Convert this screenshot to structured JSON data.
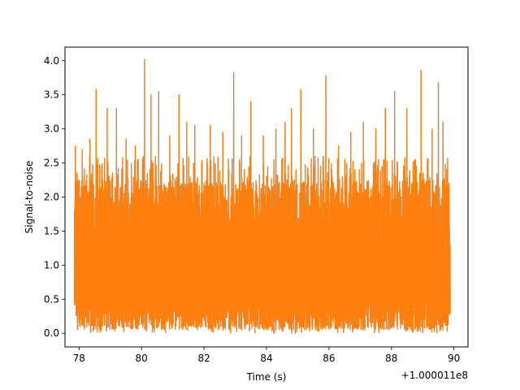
{
  "chart_data": {
    "type": "line",
    "title": "",
    "xlabel": "Time (s)",
    "ylabel": "Signal-to-noise",
    "x_offset_label": "+1.000011e8",
    "xlim": [
      77.55,
      90.45
    ],
    "ylim": [
      -0.2,
      4.2
    ],
    "x_ticks": [
      {
        "value": 78,
        "label": "78"
      },
      {
        "value": 80,
        "label": "80"
      },
      {
        "value": 82,
        "label": "82"
      },
      {
        "value": 84,
        "label": "84"
      },
      {
        "value": 86,
        "label": "86"
      },
      {
        "value": 88,
        "label": "88"
      },
      {
        "value": 90,
        "label": "90"
      }
    ],
    "y_ticks": [
      {
        "value": 0.0,
        "label": "0.0"
      },
      {
        "value": 0.5,
        "label": "0.5"
      },
      {
        "value": 1.0,
        "label": "1.0"
      },
      {
        "value": 1.5,
        "label": "1.5"
      },
      {
        "value": 2.0,
        "label": "2.0"
      },
      {
        "value": 2.5,
        "label": "2.5"
      },
      {
        "value": 3.0,
        "label": "3.0"
      },
      {
        "value": 3.5,
        "label": "3.5"
      },
      {
        "value": 4.0,
        "label": "4.0"
      }
    ],
    "grid": false,
    "legend": "none",
    "colors": {
      "series": "#ff7f0e",
      "underlay": "#1f77b4",
      "axes": "#000000"
    },
    "series": [
      {
        "x_range": [
          77.85,
          89.88
        ],
        "peaks": [
          {
            "x": 77.88,
            "y": 2.75
          },
          {
            "x": 78.1,
            "y": 2.7
          },
          {
            "x": 78.35,
            "y": 2.85
          },
          {
            "x": 78.55,
            "y": 3.58
          },
          {
            "x": 78.9,
            "y": 3.3
          },
          {
            "x": 79.2,
            "y": 3.3
          },
          {
            "x": 79.5,
            "y": 2.85
          },
          {
            "x": 79.8,
            "y": 2.75
          },
          {
            "x": 80.1,
            "y": 4.02
          },
          {
            "x": 80.3,
            "y": 3.5
          },
          {
            "x": 80.55,
            "y": 3.55
          },
          {
            "x": 80.9,
            "y": 2.9
          },
          {
            "x": 81.2,
            "y": 3.5
          },
          {
            "x": 81.45,
            "y": 3.1
          },
          {
            "x": 81.7,
            "y": 3.05
          },
          {
            "x": 82.2,
            "y": 3.05
          },
          {
            "x": 82.6,
            "y": 2.95
          },
          {
            "x": 82.95,
            "y": 3.83
          },
          {
            "x": 83.2,
            "y": 2.9
          },
          {
            "x": 83.5,
            "y": 3.4
          },
          {
            "x": 83.9,
            "y": 2.9
          },
          {
            "x": 84.3,
            "y": 3.0
          },
          {
            "x": 84.6,
            "y": 3.1
          },
          {
            "x": 84.8,
            "y": 3.3
          },
          {
            "x": 85.1,
            "y": 3.58
          },
          {
            "x": 85.5,
            "y": 3.0
          },
          {
            "x": 85.9,
            "y": 3.78
          },
          {
            "x": 86.3,
            "y": 2.75
          },
          {
            "x": 86.7,
            "y": 2.95
          },
          {
            "x": 87.1,
            "y": 3.1
          },
          {
            "x": 87.5,
            "y": 3.0
          },
          {
            "x": 87.8,
            "y": 3.3
          },
          {
            "x": 88.1,
            "y": 3.55
          },
          {
            "x": 88.5,
            "y": 3.3
          },
          {
            "x": 88.95,
            "y": 3.86
          },
          {
            "x": 89.3,
            "y": 3.0
          },
          {
            "x": 89.5,
            "y": 3.68
          },
          {
            "x": 89.65,
            "y": 3.1
          },
          {
            "x": 89.85,
            "y": 2.2
          }
        ],
        "typical_range": [
          0.1,
          2.3
        ],
        "min_value": 0.0
      }
    ]
  }
}
